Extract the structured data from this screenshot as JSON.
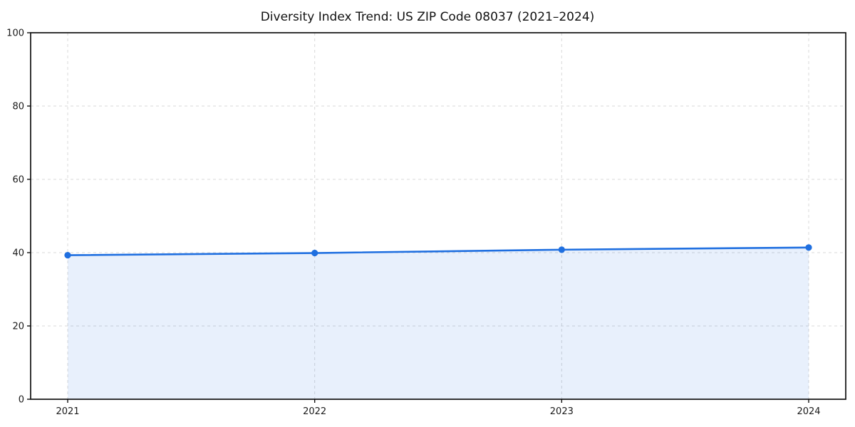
{
  "chart_data": {
    "type": "line",
    "title": "Diversity Index Trend: US ZIP Code 08037 (2021–2024)",
    "x": [
      2021,
      2022,
      2023,
      2024
    ],
    "xtick_labels": [
      "2021",
      "2022",
      "2023",
      "2024"
    ],
    "series": [
      {
        "name": "Diversity Index",
        "values": [
          39.3,
          39.9,
          40.8,
          41.4
        ]
      }
    ],
    "xlabel": "",
    "ylabel": "",
    "ylim": [
      0,
      100
    ],
    "yticks": [
      0,
      20,
      40,
      60,
      80,
      100
    ],
    "grid": true,
    "grid_style": "dashed",
    "legend_position": "none",
    "area_fill": true,
    "colors": {
      "line": "#1f6fe0",
      "marker": "#1f6fe0",
      "fill": "#1f6fe0",
      "fill_opacity": 0.1,
      "grid": "#d9d9d9",
      "axis": "#111111",
      "tick_text": "#1a1a1a",
      "title_text": "#111111",
      "background": "#ffffff"
    }
  }
}
